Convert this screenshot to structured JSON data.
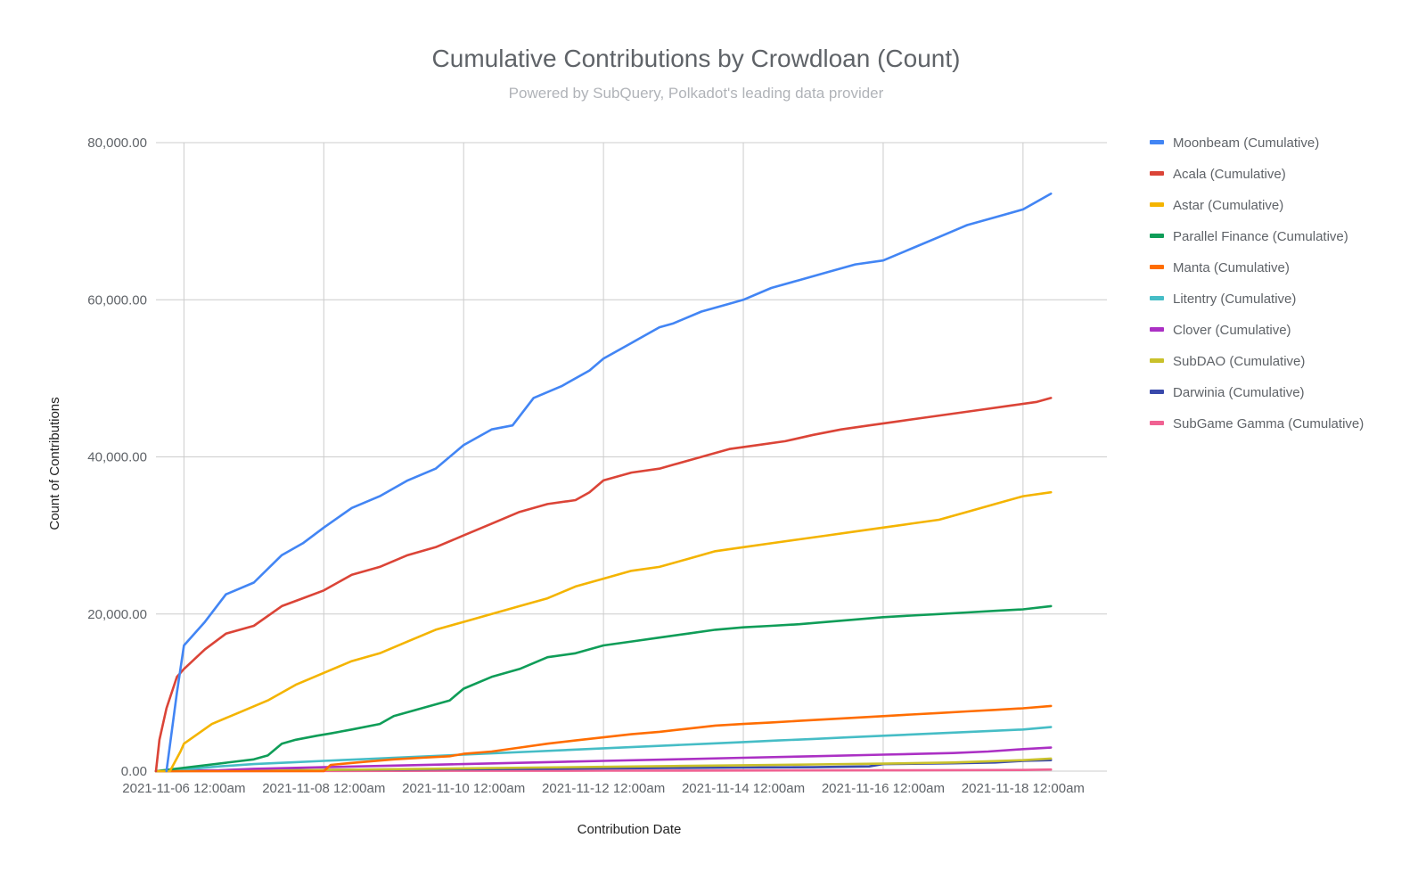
{
  "chart_data": {
    "type": "line",
    "title": "Cumulative Contributions by Crowdloan (Count)",
    "subtitle": "Powered by SubQuery, Polkadot's leading data provider",
    "xlabel": "Contribution Date",
    "ylabel": "Count of Contributions",
    "x_unit": "days since 2021-11-06 12:00am",
    "xlim": [
      -0.4,
      13.2
    ],
    "ylim": [
      0,
      80000
    ],
    "y_ticks": [
      {
        "value": 0,
        "label": "0.00"
      },
      {
        "value": 20000,
        "label": "20,000.00"
      },
      {
        "value": 40000,
        "label": "40,000.00"
      },
      {
        "value": 60000,
        "label": "60,000.00"
      },
      {
        "value": 80000,
        "label": "80,000.00"
      }
    ],
    "x_ticks": [
      {
        "value": 0,
        "label": "2021-11-06 12:00am"
      },
      {
        "value": 2,
        "label": "2021-11-08 12:00am"
      },
      {
        "value": 4,
        "label": "2021-11-10 12:00am"
      },
      {
        "value": 6,
        "label": "2021-11-12 12:00am"
      },
      {
        "value": 8,
        "label": "2021-11-14 12:00am"
      },
      {
        "value": 10,
        "label": "2021-11-16 12:00am"
      },
      {
        "value": 12,
        "label": "2021-11-18 12:00am"
      }
    ],
    "grid": true,
    "legend_position": "right",
    "series": [
      {
        "name": "Moonbeam (Cumulative)",
        "color": "#4285f4",
        "x": [
          -0.25,
          -0.1,
          0.0,
          0.3,
          0.6,
          1.0,
          1.4,
          1.7,
          2.0,
          2.4,
          2.8,
          3.2,
          3.6,
          4.0,
          4.4,
          4.7,
          5.0,
          5.4,
          5.8,
          6.0,
          6.4,
          6.8,
          7.0,
          7.4,
          7.8,
          8.0,
          8.4,
          8.8,
          9.2,
          9.6,
          10.0,
          10.4,
          10.8,
          11.2,
          11.6,
          12.0,
          12.4
        ],
        "y": [
          0,
          10000,
          16000,
          19000,
          22500,
          24000,
          27500,
          29000,
          31000,
          33500,
          35000,
          37000,
          38500,
          41500,
          43500,
          44000,
          47500,
          49000,
          51000,
          52500,
          54500,
          56500,
          57000,
          58500,
          59500,
          60000,
          61500,
          62500,
          63500,
          64500,
          65000,
          66500,
          68000,
          69500,
          70500,
          71500,
          73500
        ]
      },
      {
        "name": "Acala (Cumulative)",
        "color": "#db4437",
        "x": [
          -0.4,
          -0.35,
          -0.25,
          -0.1,
          0.0,
          0.3,
          0.6,
          1.0,
          1.4,
          1.7,
          2.0,
          2.4,
          2.8,
          3.2,
          3.6,
          4.0,
          4.4,
          4.8,
          5.2,
          5.6,
          5.8,
          6.0,
          6.4,
          6.8,
          7.0,
          7.4,
          7.8,
          8.2,
          8.6,
          9.0,
          9.4,
          9.8,
          10.2,
          10.6,
          11.0,
          11.4,
          11.8,
          12.2,
          12.4
        ],
        "y": [
          0,
          4000,
          8000,
          12000,
          13000,
          15500,
          17500,
          18500,
          21000,
          22000,
          23000,
          25000,
          26000,
          27500,
          28500,
          30000,
          31500,
          33000,
          34000,
          34500,
          35500,
          37000,
          38000,
          38500,
          39000,
          40000,
          41000,
          41500,
          42000,
          42800,
          43500,
          44000,
          44500,
          45000,
          45500,
          46000,
          46500,
          47000,
          47500
        ]
      },
      {
        "name": "Astar (Cumulative)",
        "color": "#f4b400",
        "x": [
          -0.4,
          -0.2,
          -0.05,
          0.0,
          0.4,
          0.8,
          1.2,
          1.6,
          2.0,
          2.4,
          2.8,
          3.2,
          3.6,
          4.0,
          4.4,
          4.8,
          5.2,
          5.6,
          6.0,
          6.4,
          6.8,
          7.2,
          7.6,
          8.0,
          8.4,
          8.8,
          9.2,
          9.6,
          10.0,
          10.4,
          10.8,
          11.2,
          11.6,
          12.0,
          12.4
        ],
        "y": [
          0,
          0,
          2500,
          3500,
          6000,
          7500,
          9000,
          11000,
          12500,
          14000,
          15000,
          16500,
          18000,
          19000,
          20000,
          21000,
          22000,
          23500,
          24500,
          25500,
          26000,
          27000,
          28000,
          28500,
          29000,
          29500,
          30000,
          30500,
          31000,
          31500,
          32000,
          33000,
          34000,
          35000,
          35500
        ]
      },
      {
        "name": "Parallel Finance (Cumulative)",
        "color": "#0f9d58",
        "x": [
          -0.4,
          1.0,
          1.2,
          1.4,
          1.6,
          1.9,
          2.1,
          2.4,
          2.8,
          3.0,
          3.4,
          3.8,
          4.0,
          4.4,
          4.8,
          5.2,
          5.6,
          6.0,
          6.4,
          6.8,
          7.2,
          7.6,
          8.0,
          8.4,
          8.8,
          9.2,
          9.6,
          10.0,
          10.4,
          10.8,
          11.2,
          11.6,
          12.0,
          12.4
        ],
        "y": [
          0,
          1500,
          2000,
          3500,
          4000,
          4500,
          4800,
          5300,
          6000,
          7000,
          8000,
          9000,
          10500,
          12000,
          13000,
          14500,
          15000,
          16000,
          16500,
          17000,
          17500,
          18000,
          18300,
          18500,
          18700,
          19000,
          19300,
          19600,
          19800,
          20000,
          20200,
          20400,
          20600,
          21000
        ]
      },
      {
        "name": "Manta (Cumulative)",
        "color": "#ff6d00",
        "x": [
          -0.4,
          2.0,
          2.1,
          2.6,
          3.0,
          3.4,
          3.8,
          4.0,
          4.4,
          4.8,
          5.2,
          5.6,
          6.0,
          6.4,
          6.8,
          7.2,
          7.6,
          8.0,
          8.4,
          8.8,
          9.2,
          9.6,
          10.0,
          10.4,
          10.8,
          11.2,
          11.6,
          12.0,
          12.4
        ],
        "y": [
          0,
          0,
          800,
          1200,
          1500,
          1700,
          1900,
          2200,
          2500,
          3000,
          3500,
          3900,
          4300,
          4700,
          5000,
          5400,
          5800,
          6000,
          6200,
          6400,
          6600,
          6800,
          7000,
          7200,
          7400,
          7600,
          7800,
          8000,
          8300
        ]
      },
      {
        "name": "Litentry (Cumulative)",
        "color": "#46bdc6",
        "x": [
          -0.4,
          0.0,
          0.5,
          1.0,
          1.5,
          2.0,
          2.5,
          3.0,
          3.5,
          4.0,
          4.5,
          5.0,
          5.5,
          6.0,
          6.5,
          7.0,
          7.5,
          8.0,
          8.5,
          9.0,
          9.5,
          10.0,
          10.5,
          11.0,
          11.5,
          12.0,
          12.4
        ],
        "y": [
          0,
          200,
          600,
          900,
          1100,
          1300,
          1500,
          1700,
          1900,
          2100,
          2300,
          2500,
          2700,
          2900,
          3100,
          3300,
          3500,
          3700,
          3900,
          4100,
          4300,
          4500,
          4700,
          4900,
          5100,
          5300,
          5600
        ]
      },
      {
        "name": "Clover (Cumulative)",
        "color": "#ab30c4",
        "x": [
          -0.4,
          0.5,
          1.0,
          2.0,
          3.0,
          4.0,
          5.0,
          6.0,
          7.0,
          8.0,
          9.0,
          10.0,
          11.0,
          11.5,
          12.0,
          12.4
        ],
        "y": [
          0,
          100,
          300,
          500,
          700,
          900,
          1100,
          1300,
          1500,
          1700,
          1900,
          2100,
          2300,
          2500,
          2800,
          3000
        ]
      },
      {
        "name": "SubDAO (Cumulative)",
        "color": "#c9c12b",
        "x": [
          -0.4,
          1.0,
          2.0,
          3.0,
          4.0,
          5.0,
          6.0,
          7.0,
          8.0,
          9.0,
          10.0,
          11.0,
          12.0,
          12.4
        ],
        "y": [
          0,
          50,
          150,
          250,
          350,
          450,
          550,
          650,
          750,
          850,
          950,
          1100,
          1400,
          1600
        ]
      },
      {
        "name": "Darwinia (Cumulative)",
        "color": "#3949ab",
        "x": [
          -0.4,
          1.0,
          2.0,
          3.0,
          4.0,
          5.0,
          6.0,
          7.0,
          8.0,
          9.0,
          9.8,
          10.0,
          11.0,
          11.6,
          12.0,
          12.4
        ],
        "y": [
          0,
          100,
          150,
          200,
          250,
          300,
          350,
          400,
          450,
          500,
          600,
          900,
          1000,
          1100,
          1300,
          1400
        ]
      },
      {
        "name": "SubGame Gamma (Cumulative)",
        "color": "#f06292",
        "x": [
          -0.4,
          2.0,
          4.0,
          6.0,
          8.0,
          10.0,
          12.0,
          12.4
        ],
        "y": [
          0,
          20,
          40,
          60,
          80,
          100,
          150,
          200
        ]
      }
    ]
  }
}
